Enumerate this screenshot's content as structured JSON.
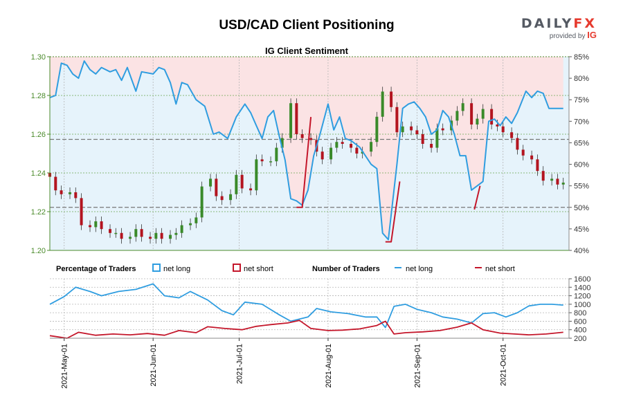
{
  "chart_data": [
    {
      "type": "candlestick",
      "title": "USD/CAD Client Positioning",
      "subtitle": "IG Client Sentiment",
      "ylim": [
        1.2,
        1.3
      ],
      "y_ticks": [
        "1.30",
        "1.28",
        "1.26",
        "1.24",
        "1.22",
        "1.20"
      ],
      "y2lim": [
        40,
        85
      ],
      "y2_ticks": [
        "85%",
        "80%",
        "75%",
        "70%",
        "65%",
        "60%",
        "55%",
        "50%",
        "45%",
        "40%"
      ],
      "x_ticks": [
        "2021-May-01",
        "2021-Jun-01",
        "2021-Jul-01",
        "2021-Aug-01",
        "2021-Sep-01",
        "2021-Oct-01"
      ],
      "x_range": [
        "2021-04-26",
        "2021-10-24"
      ],
      "price": [
        [
          "2021-04-26",
          1.238
        ],
        [
          "2021-04-28",
          1.231
        ],
        [
          "2021-04-30",
          1.229
        ],
        [
          "2021-05-03",
          1.23
        ],
        [
          "2021-05-05",
          1.227
        ],
        [
          "2021-05-07",
          1.213
        ],
        [
          "2021-05-10",
          1.212
        ],
        [
          "2021-05-12",
          1.215
        ],
        [
          "2021-05-14",
          1.211
        ],
        [
          "2021-05-17",
          1.209
        ],
        [
          "2021-05-19",
          1.209
        ],
        [
          "2021-05-21",
          1.206
        ],
        [
          "2021-05-24",
          1.207
        ],
        [
          "2021-05-26",
          1.211
        ],
        [
          "2021-05-28",
          1.207
        ],
        [
          "2021-05-31",
          1.206
        ],
        [
          "2021-06-02",
          1.209
        ],
        [
          "2021-06-04",
          1.206
        ],
        [
          "2021-06-07",
          1.208
        ],
        [
          "2021-06-09",
          1.209
        ],
        [
          "2021-06-11",
          1.213
        ],
        [
          "2021-06-14",
          1.214
        ],
        [
          "2021-06-16",
          1.217
        ],
        [
          "2021-06-18",
          1.233
        ],
        [
          "2021-06-21",
          1.237
        ],
        [
          "2021-06-23",
          1.228
        ],
        [
          "2021-06-25",
          1.226
        ],
        [
          "2021-06-28",
          1.229
        ],
        [
          "2021-06-30",
          1.239
        ],
        [
          "2021-07-02",
          1.232
        ],
        [
          "2021-07-05",
          1.231
        ],
        [
          "2021-07-07",
          1.247
        ],
        [
          "2021-07-09",
          1.246
        ],
        [
          "2021-07-12",
          1.246
        ],
        [
          "2021-07-14",
          1.253
        ],
        [
          "2021-07-16",
          1.258
        ],
        [
          "2021-07-19",
          1.276
        ],
        [
          "2021-07-21",
          1.26
        ],
        [
          "2021-07-23",
          1.258
        ],
        [
          "2021-07-26",
          1.257
        ],
        [
          "2021-07-28",
          1.251
        ],
        [
          "2021-07-30",
          1.247
        ],
        [
          "2021-08-02",
          1.253
        ],
        [
          "2021-08-04",
          1.256
        ],
        [
          "2021-08-06",
          1.255
        ],
        [
          "2021-08-09",
          1.253
        ],
        [
          "2021-08-11",
          1.25
        ],
        [
          "2021-08-13",
          1.251
        ],
        [
          "2021-08-16",
          1.256
        ],
        [
          "2021-08-18",
          1.269
        ],
        [
          "2021-08-20",
          1.282
        ],
        [
          "2021-08-23",
          1.274
        ],
        [
          "2021-08-25",
          1.261
        ],
        [
          "2021-08-27",
          1.264
        ],
        [
          "2021-08-30",
          1.262
        ],
        [
          "2021-09-01",
          1.26
        ],
        [
          "2021-09-03",
          1.255
        ],
        [
          "2021-09-06",
          1.253
        ],
        [
          "2021-09-08",
          1.263
        ],
        [
          "2021-09-10",
          1.262
        ],
        [
          "2021-09-13",
          1.267
        ],
        [
          "2021-09-15",
          1.272
        ],
        [
          "2021-09-17",
          1.276
        ],
        [
          "2021-09-20",
          1.265
        ],
        [
          "2021-09-22",
          1.268
        ],
        [
          "2021-09-24",
          1.273
        ],
        [
          "2021-09-27",
          1.265
        ],
        [
          "2021-09-29",
          1.264
        ],
        [
          "2021-10-01",
          1.261
        ],
        [
          "2021-10-04",
          1.258
        ],
        [
          "2021-10-06",
          1.252
        ],
        [
          "2021-10-08",
          1.249
        ],
        [
          "2021-10-11",
          1.247
        ],
        [
          "2021-10-13",
          1.241
        ],
        [
          "2021-10-15",
          1.236
        ],
        [
          "2021-10-18",
          1.237
        ],
        [
          "2021-10-20",
          1.234
        ],
        [
          "2021-10-22",
          1.235
        ]
      ],
      "series": [
        {
          "name": "net long",
          "color": "#2f9de0",
          "values": [
            [
              "2021-04-26",
              75.5
            ],
            [
              "2021-04-28",
              76.0
            ],
            [
              "2021-04-30",
              83.5
            ],
            [
              "2021-05-02",
              83.0
            ],
            [
              "2021-05-04",
              81.0
            ],
            [
              "2021-05-06",
              80.0
            ],
            [
              "2021-05-08",
              84.0
            ],
            [
              "2021-05-10",
              82.0
            ],
            [
              "2021-05-12",
              81.0
            ],
            [
              "2021-05-14",
              82.5
            ],
            [
              "2021-05-17",
              81.5
            ],
            [
              "2021-05-19",
              82.0
            ],
            [
              "2021-05-21",
              79.5
            ],
            [
              "2021-05-23",
              82.5
            ],
            [
              "2021-05-26",
              77.0
            ],
            [
              "2021-05-28",
              81.5
            ],
            [
              "2021-06-01",
              81.0
            ],
            [
              "2021-06-03",
              82.5
            ],
            [
              "2021-06-05",
              82.0
            ],
            [
              "2021-06-07",
              79.0
            ],
            [
              "2021-06-09",
              74.0
            ],
            [
              "2021-06-11",
              79.0
            ],
            [
              "2021-06-13",
              78.5
            ],
            [
              "2021-06-16",
              75.0
            ],
            [
              "2021-06-19",
              73.5
            ],
            [
              "2021-06-22",
              67.0
            ],
            [
              "2021-06-24",
              67.5
            ],
            [
              "2021-06-27",
              66.0
            ],
            [
              "2021-06-30",
              71.0
            ],
            [
              "2021-07-03",
              74.0
            ],
            [
              "2021-07-05",
              72.0
            ],
            [
              "2021-07-07",
              69.0
            ],
            [
              "2021-07-09",
              66.0
            ],
            [
              "2021-07-11",
              71.0
            ],
            [
              "2021-07-13",
              72.5
            ],
            [
              "2021-07-15",
              66.5
            ],
            [
              "2021-07-17",
              61.0
            ],
            [
              "2021-07-19",
              52.0
            ],
            [
              "2021-07-21",
              51.5
            ],
            [
              "2021-07-23",
              50.5
            ],
            [
              "2021-07-25",
              54.0
            ],
            [
              "2021-07-27",
              62.0
            ],
            [
              "2021-07-29",
              66.5
            ],
            [
              "2021-08-01",
              74.0
            ],
            [
              "2021-08-03",
              68.0
            ],
            [
              "2021-08-05",
              71.0
            ],
            [
              "2021-08-07",
              66.0
            ],
            [
              "2021-08-09",
              65.5
            ],
            [
              "2021-08-12",
              64.0
            ],
            [
              "2021-08-14",
              62.0
            ],
            [
              "2021-08-16",
              60.0
            ],
            [
              "2021-08-18",
              59.0
            ],
            [
              "2021-08-20",
              44.0
            ],
            [
              "2021-08-22",
              42.5
            ],
            [
              "2021-08-25",
              60.0
            ],
            [
              "2021-08-27",
              73.0
            ],
            [
              "2021-08-29",
              74.0
            ],
            [
              "2021-08-31",
              74.5
            ],
            [
              "2021-09-02",
              73.0
            ],
            [
              "2021-09-04",
              71.0
            ],
            [
              "2021-09-06",
              67.0
            ],
            [
              "2021-09-08",
              68.0
            ],
            [
              "2021-09-10",
              72.5
            ],
            [
              "2021-09-12",
              71.0
            ],
            [
              "2021-09-14",
              67.0
            ],
            [
              "2021-09-16",
              62.0
            ],
            [
              "2021-09-18",
              62.0
            ],
            [
              "2021-09-20",
              54.0
            ],
            [
              "2021-09-22",
              55.0
            ],
            [
              "2021-09-24",
              56.0
            ],
            [
              "2021-09-26",
              70.0
            ],
            [
              "2021-09-28",
              70.5
            ],
            [
              "2021-09-30",
              69.0
            ],
            [
              "2021-10-02",
              71.0
            ],
            [
              "2021-10-04",
              69.5
            ],
            [
              "2021-10-06",
              72.0
            ],
            [
              "2021-10-09",
              77.0
            ],
            [
              "2021-10-11",
              75.5
            ],
            [
              "2021-10-13",
              77.0
            ],
            [
              "2021-10-15",
              76.5
            ],
            [
              "2021-10-17",
              73.0
            ],
            [
              "2021-10-20",
              73.0
            ],
            [
              "2021-10-22",
              73.0
            ]
          ]
        },
        {
          "name": "net short",
          "color": "#c4162a",
          "values": [
            [
              "2021-07-21",
              50.0
            ],
            [
              "2021-07-23",
              50.0
            ],
            [
              "2021-07-26",
              71.0
            ],
            [
              "2021-08-21",
              42.0
            ],
            [
              "2021-08-23",
              42.0
            ],
            [
              "2021-08-26",
              56.0
            ],
            [
              "2021-09-21",
              49.5
            ],
            [
              "2021-09-23",
              55.0
            ]
          ]
        }
      ],
      "reference_lines": [
        65.8,
        50.0
      ]
    },
    {
      "type": "line",
      "ylim": [
        200,
        1600
      ],
      "y_ticks": [
        "1600",
        "1400",
        "1200",
        "1000",
        "800",
        "600",
        "400",
        "200"
      ],
      "series": [
        {
          "name": "net long",
          "color": "#2f9de0",
          "values": [
            [
              "2021-04-26",
              1000
            ],
            [
              "2021-05-01",
              1180
            ],
            [
              "2021-05-05",
              1400
            ],
            [
              "2021-05-10",
              1300
            ],
            [
              "2021-05-14",
              1200
            ],
            [
              "2021-05-20",
              1300
            ],
            [
              "2021-05-26",
              1350
            ],
            [
              "2021-06-01",
              1480
            ],
            [
              "2021-06-05",
              1200
            ],
            [
              "2021-06-10",
              1150
            ],
            [
              "2021-06-14",
              1300
            ],
            [
              "2021-06-20",
              1100
            ],
            [
              "2021-06-25",
              850
            ],
            [
              "2021-06-29",
              750
            ],
            [
              "2021-07-03",
              1050
            ],
            [
              "2021-07-09",
              1000
            ],
            [
              "2021-07-15",
              750
            ],
            [
              "2021-07-19",
              600
            ],
            [
              "2021-07-25",
              700
            ],
            [
              "2021-07-28",
              900
            ],
            [
              "2021-08-02",
              820
            ],
            [
              "2021-08-08",
              780
            ],
            [
              "2021-08-14",
              700
            ],
            [
              "2021-08-18",
              700
            ],
            [
              "2021-08-21",
              450
            ],
            [
              "2021-08-24",
              950
            ],
            [
              "2021-08-28",
              1000
            ],
            [
              "2021-09-01",
              880
            ],
            [
              "2021-09-06",
              800
            ],
            [
              "2021-09-10",
              700
            ],
            [
              "2021-09-15",
              650
            ],
            [
              "2021-09-20",
              560
            ],
            [
              "2021-09-24",
              780
            ],
            [
              "2021-09-28",
              800
            ],
            [
              "2021-10-02",
              700
            ],
            [
              "2021-10-06",
              800
            ],
            [
              "2021-10-10",
              960
            ],
            [
              "2021-10-14",
              1000
            ],
            [
              "2021-10-18",
              1000
            ],
            [
              "2021-10-22",
              980
            ]
          ]
        },
        {
          "name": "net short",
          "color": "#c4162a",
          "values": [
            [
              "2021-04-26",
              260
            ],
            [
              "2021-05-02",
              200
            ],
            [
              "2021-05-06",
              340
            ],
            [
              "2021-05-12",
              270
            ],
            [
              "2021-05-18",
              300
            ],
            [
              "2021-05-24",
              280
            ],
            [
              "2021-05-30",
              310
            ],
            [
              "2021-06-05",
              270
            ],
            [
              "2021-06-10",
              380
            ],
            [
              "2021-06-16",
              330
            ],
            [
              "2021-06-20",
              470
            ],
            [
              "2021-06-26",
              430
            ],
            [
              "2021-07-02",
              400
            ],
            [
              "2021-07-07",
              480
            ],
            [
              "2021-07-12",
              520
            ],
            [
              "2021-07-18",
              560
            ],
            [
              "2021-07-22",
              620
            ],
            [
              "2021-07-26",
              430
            ],
            [
              "2021-08-01",
              380
            ],
            [
              "2021-08-06",
              390
            ],
            [
              "2021-08-12",
              420
            ],
            [
              "2021-08-18",
              500
            ],
            [
              "2021-08-21",
              600
            ],
            [
              "2021-08-24",
              300
            ],
            [
              "2021-08-28",
              330
            ],
            [
              "2021-09-03",
              350
            ],
            [
              "2021-09-09",
              380
            ],
            [
              "2021-09-15",
              460
            ],
            [
              "2021-09-20",
              560
            ],
            [
              "2021-09-24",
              400
            ],
            [
              "2021-09-30",
              320
            ],
            [
              "2021-10-05",
              300
            ],
            [
              "2021-10-10",
              280
            ],
            [
              "2021-10-16",
              300
            ],
            [
              "2021-10-22",
              340
            ]
          ]
        }
      ]
    }
  ],
  "legend": {
    "percentage_heading": "Percentage of Traders",
    "number_heading": "Number of Traders",
    "long_label": "net long",
    "short_label": "net short"
  },
  "brand": {
    "logo_daily": "DAILY",
    "logo_fx": "FX",
    "provided_by": "provided by",
    "ig": "IG"
  },
  "colors": {
    "long": "#2f9de0",
    "short": "#c4162a",
    "up_candle": "#3a8a2a",
    "down_candle": "#b3141f",
    "long_fill": "#e6f3fb",
    "short_fill": "#fbe3e4",
    "axis_green": "#4a8a2a"
  }
}
